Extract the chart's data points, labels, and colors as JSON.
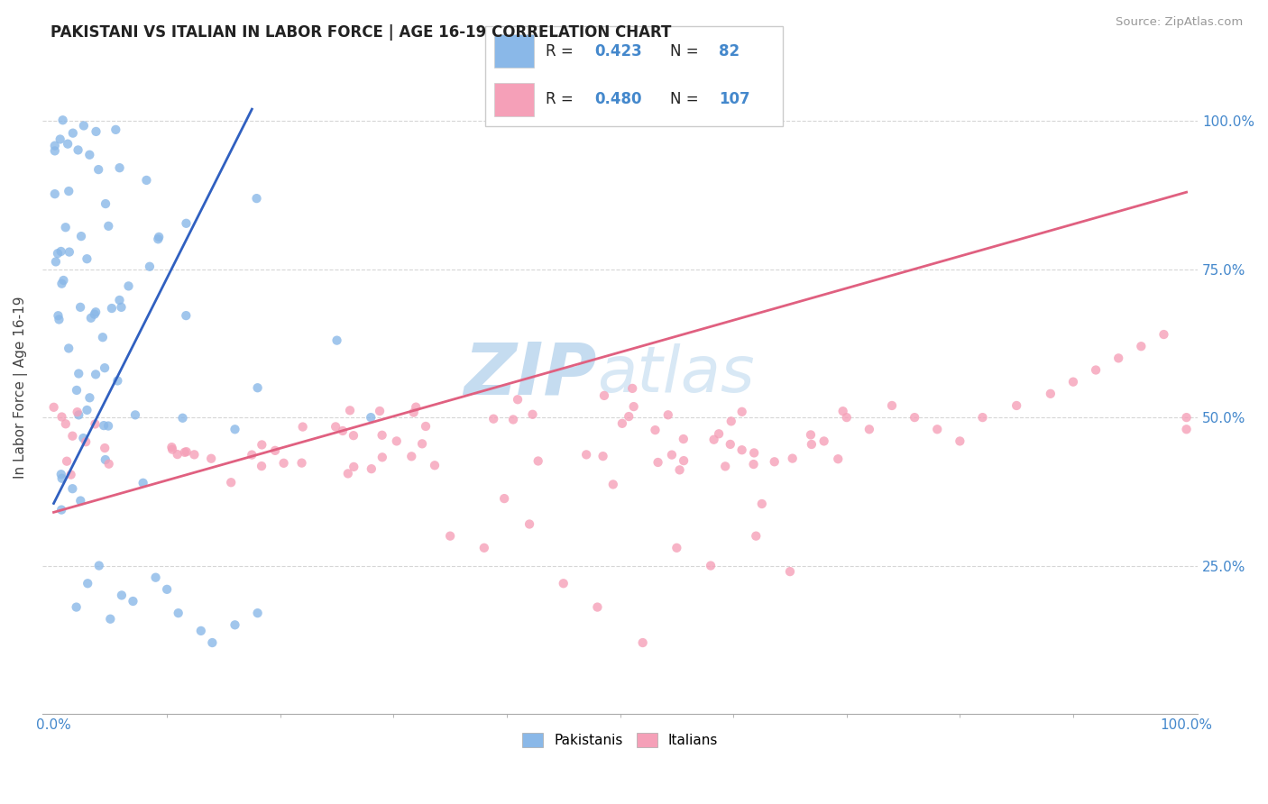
{
  "title": "PAKISTANI VS ITALIAN IN LABOR FORCE | AGE 16-19 CORRELATION CHART",
  "source_text": "Source: ZipAtlas.com",
  "ylabel": "In Labor Force | Age 16-19",
  "xlim": [
    -0.01,
    1.01
  ],
  "ylim": [
    0.0,
    1.1
  ],
  "right_yticks": [
    0.25,
    0.5,
    0.75,
    1.0
  ],
  "right_yticklabels": [
    "25.0%",
    "50.0%",
    "75.0%",
    "100.0%"
  ],
  "x_edge_labels": [
    "0.0%",
    "100.0%"
  ],
  "blue_R": 0.423,
  "blue_N": 82,
  "pink_R": 0.48,
  "pink_N": 107,
  "blue_color": "#8AB8E8",
  "pink_color": "#F5A0B8",
  "blue_line_color": "#3060C0",
  "pink_line_color": "#E06080",
  "watermark_zip": "ZIP",
  "watermark_atlas": "atlas",
  "grid_color": "#CCCCCC",
  "blue_line_x": [
    0.0,
    0.175
  ],
  "blue_line_y": [
    0.355,
    1.02
  ],
  "pink_line_x": [
    0.0,
    1.0
  ],
  "pink_line_y": [
    0.34,
    0.88
  ]
}
